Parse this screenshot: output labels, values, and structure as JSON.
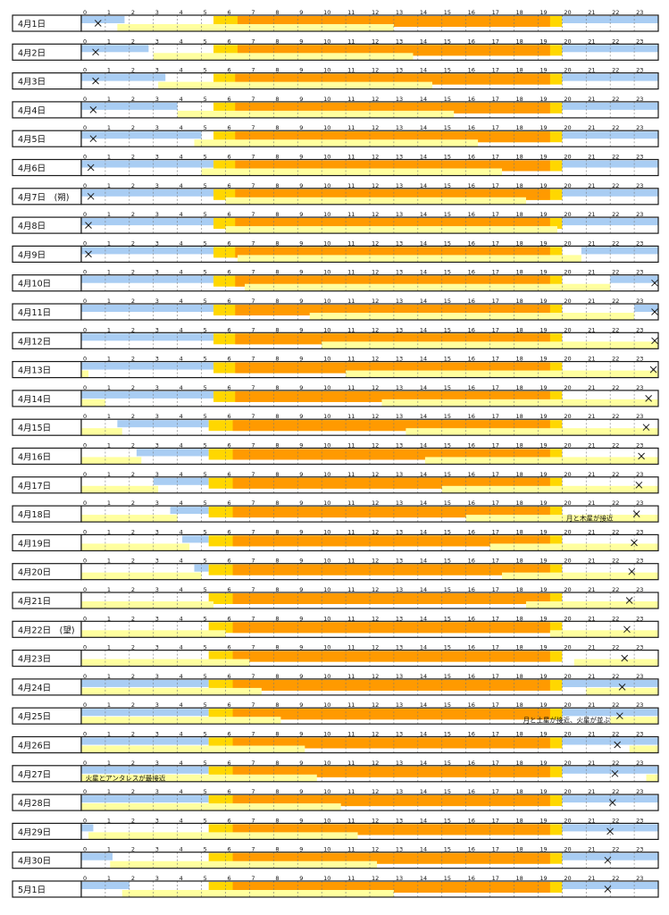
{
  "chart_data": {
    "type": "gantt",
    "hour_ticks": [
      "0",
      "1",
      "2",
      "3",
      "4",
      "5",
      "6",
      "7",
      "8",
      "9",
      "10",
      "11",
      "12",
      "13",
      "14",
      "15",
      "16",
      "17",
      "18",
      "19",
      "20",
      "21",
      "22",
      "23"
    ],
    "hour_range": [
      0,
      24
    ],
    "colors": {
      "night": "#a9cdf3",
      "twilight": "#ffd700",
      "daylight": "#ff9a00",
      "moon": "#ffff9f",
      "border": "#1a1a1a",
      "gridline": "#777777",
      "watermark": "#c8c8c8"
    },
    "days": [
      {
        "label": "4月1日",
        "daylight": [
          6.5,
          19.5
        ],
        "twilight": [
          5.5,
          20
        ],
        "night_end": 1.8,
        "night_start": 20,
        "moon": [
          1.5,
          13
        ],
        "moon_pos": 0.4
      },
      {
        "label": "4月2日",
        "daylight": [
          6.5,
          19.5
        ],
        "twilight": [
          5.5,
          20
        ],
        "night_end": 2.8,
        "night_start": 20,
        "moon": [
          3,
          13.8
        ],
        "moon_pos": 0.3
      },
      {
        "label": "4月3日",
        "daylight": [
          6.4,
          19.5
        ],
        "twilight": [
          5.5,
          20
        ],
        "night_end": 3.5,
        "night_start": 20,
        "moon": [
          3.2,
          14.6
        ],
        "moon_pos": 0.3
      },
      {
        "label": "4月4日",
        "daylight": [
          6.4,
          19.5
        ],
        "twilight": [
          5.5,
          20
        ],
        "night_end": 4,
        "night_start": 20,
        "moon": [
          4,
          15.5
        ],
        "moon_pos": 0.2
      },
      {
        "label": "4月5日",
        "daylight": [
          6.4,
          19.5
        ],
        "twilight": [
          5.5,
          20
        ],
        "night_end": 5,
        "night_start": 20,
        "moon": [
          4.7,
          16.5
        ],
        "moon_pos": 0.2
      },
      {
        "label": "4月6日",
        "daylight": [
          6.4,
          19.5
        ],
        "twilight": [
          5.5,
          20
        ],
        "night_end": 5.5,
        "night_start": 20,
        "moon": [
          5,
          17.5
        ],
        "moon_pos": 0.1
      },
      {
        "label": "4月7日　(朔)",
        "daylight": [
          6.4,
          19.5
        ],
        "twilight": [
          5.5,
          20
        ],
        "night_end": 5.5,
        "night_start": 20,
        "moon": [
          6,
          18.5
        ],
        "moon_pos": 0.1
      },
      {
        "label": "4月8日",
        "daylight": [
          6.4,
          19.5
        ],
        "twilight": [
          5.5,
          20
        ],
        "night_end": 5.5,
        "night_start": 20,
        "moon": [
          6,
          19.8
        ],
        "moon_pos": 0.0
      },
      {
        "label": "4月9日",
        "daylight": [
          6.4,
          19.5
        ],
        "twilight": [
          5.5,
          20
        ],
        "night_end": 5.5,
        "night_start": 20.8,
        "moon": [
          6.5,
          20.8
        ],
        "moon_pos": 0.0
      },
      {
        "label": "4月10日",
        "daylight": [
          6.4,
          19.5
        ],
        "twilight": [
          5.5,
          20
        ],
        "night_end": 5.5,
        "night_start": 22,
        "moon": [
          6.8,
          22
        ],
        "moon_pos": 23.9
      },
      {
        "label": "4月11日",
        "daylight": [
          6.4,
          19.5
        ],
        "twilight": [
          5.5,
          20
        ],
        "night_end": 5.5,
        "night_start": 23,
        "moon": [
          9.5,
          23
        ],
        "moon_pos": 23.8
      },
      {
        "label": "4月12日",
        "daylight": [
          6.4,
          19.5
        ],
        "twilight": [
          5.5,
          20
        ],
        "night_end": 5.5,
        "night_start": 24,
        "moon": [
          10,
          24
        ],
        "moon_pos": 23.6
      },
      {
        "label": "4月13日",
        "daylight": [
          6.4,
          19.5
        ],
        "twilight": [
          5.5,
          20
        ],
        "night_end": 5.5,
        "night_start": 24,
        "moon": [
          11,
          24
        ],
        "moon_pos": 23.5,
        "moon_am": 0.3
      },
      {
        "label": "4月14日",
        "daylight": [
          6.4,
          19.5
        ],
        "twilight": [
          5.5,
          20
        ],
        "night_end": 5.5,
        "night_start": 24,
        "moon": [
          12.5,
          24
        ],
        "moon_pos": 23.3,
        "moon_am": 1
      },
      {
        "label": "4月15日",
        "daylight": [
          6.3,
          19.5
        ],
        "twilight": [
          5.3,
          20
        ],
        "night_end": 5.3,
        "night_start": 24,
        "night_begin": 1.5,
        "moon": [
          13.5,
          24
        ],
        "moon_pos": 23.2,
        "moon_am": 1.7
      },
      {
        "label": "4月16日",
        "daylight": [
          6.3,
          19.5
        ],
        "twilight": [
          5.3,
          20
        ],
        "night_end": 5.3,
        "night_start": 24,
        "night_begin": 2.3,
        "moon": [
          14.3,
          24
        ],
        "moon_pos": 23.0,
        "moon_am": 2.5
      },
      {
        "label": "4月17日",
        "daylight": [
          6.3,
          19.5
        ],
        "twilight": [
          5.3,
          20
        ],
        "night_end": 5.3,
        "night_start": 24,
        "night_begin": 3,
        "moon": [
          15,
          24
        ],
        "moon_pos": 22.9,
        "moon_am": 3.2
      },
      {
        "label": "4月18日",
        "daylight": [
          6.3,
          19.5
        ],
        "twilight": [
          5.3,
          20
        ],
        "night_end": 5.3,
        "night_start": 24,
        "night_begin": 3.7,
        "moon": [
          16,
          24
        ],
        "moon_pos": 22.8,
        "moon_am": 4
      },
      {
        "label": "4月19日",
        "daylight": [
          6.3,
          19.5
        ],
        "twilight": [
          5.3,
          20
        ],
        "night_end": 5.3,
        "night_start": 24,
        "night_begin": 4.2,
        "moon": [
          17,
          24
        ],
        "moon_pos": 22.7,
        "moon_am": 4.5
      },
      {
        "label": "4月20日",
        "daylight": [
          6.3,
          19.5
        ],
        "twilight": [
          5.3,
          20
        ],
        "night_end": 5.3,
        "night_start": 24,
        "night_begin": 4.7,
        "moon": [
          17.5,
          24
        ],
        "moon_pos": 22.6,
        "moon_am": 5
      },
      {
        "label": "4月21日",
        "daylight": [
          6.3,
          19.5
        ],
        "twilight": [
          5.3,
          20
        ],
        "night_end": 5.3,
        "night_start": 24,
        "night_begin": 5.3,
        "moon": [
          18.5,
          24
        ],
        "moon_pos": 22.5,
        "moon_am": 5.5
      },
      {
        "label": "4月22日　(望)",
        "daylight": [
          6.3,
          19.5
        ],
        "twilight": [
          5.3,
          20
        ],
        "night_end": 5.3,
        "night_start": 24,
        "night_begin": 5.3,
        "moon": [
          19.5,
          24
        ],
        "moon_pos": 22.4,
        "moon_am": 6
      },
      {
        "label": "4月23日",
        "daylight": [
          6.3,
          19.5
        ],
        "twilight": [
          5.3,
          20
        ],
        "night_end": 5.3,
        "night_start": 24,
        "night_begin": 5.3,
        "moon": [
          20.5,
          24
        ],
        "moon_pos": 22.3,
        "moon_am": 7
      },
      {
        "label": "4月24日",
        "daylight": [
          6.3,
          19.5
        ],
        "twilight": [
          5.3,
          20
        ],
        "night_end": 5.3,
        "night_start": 20,
        "night_between": [
          20,
          21
        ],
        "moon": [
          21,
          24
        ],
        "moon_pos": 22.2,
        "moon_am": 7.5
      },
      {
        "label": "4月25日",
        "daylight": [
          6.3,
          19.5
        ],
        "twilight": [
          5.3,
          20
        ],
        "night_end": 5.3,
        "night_start": 20,
        "night_between": [
          20,
          22
        ],
        "moon": [
          22,
          24
        ],
        "moon_pos": 22.1,
        "moon_am": 8.3
      },
      {
        "label": "4月26日",
        "daylight": [
          6.3,
          19.5
        ],
        "twilight": [
          5.3,
          20
        ],
        "night_end": 5.3,
        "night_start": 20,
        "night_between": [
          20,
          22.8
        ],
        "moon": [
          22.8,
          24
        ],
        "moon_pos": 22.0,
        "moon_am": 9.3
      },
      {
        "label": "4月27日",
        "daylight": [
          6.3,
          19.5
        ],
        "twilight": [
          5.3,
          20
        ],
        "night_end": 5.3,
        "night_start": 20,
        "moon": [
          23.5,
          24
        ],
        "moon_pos": 21.9,
        "moon_am": 9.8
      },
      {
        "label": "4月28日",
        "daylight": [
          6.3,
          19.5
        ],
        "twilight": [
          5.3,
          20
        ],
        "night_end": 5.3,
        "night_start": 20,
        "moon_am": 10.8,
        "moon_pos": 21.8
      },
      {
        "label": "4月29日",
        "daylight": [
          6.3,
          19.5
        ],
        "twilight": [
          5.3,
          20
        ],
        "night_end": 0.5,
        "night_start": 20,
        "moon_am": 11.5,
        "moon_am_start": 0.3,
        "moon_pos": 21.7
      },
      {
        "label": "4月30日",
        "daylight": [
          6.3,
          19.5
        ],
        "twilight": [
          5.3,
          20
        ],
        "night_end": 1.3,
        "night_start": 20,
        "moon_am": 12.3,
        "moon_am_start": 1.2,
        "moon_pos": 21.6
      },
      {
        "label": "5月1日",
        "daylight": [
          6.3,
          19.5
        ],
        "twilight": [
          5.3,
          20
        ],
        "night_end": 2,
        "night_start": 20,
        "moon_am": 13,
        "moon_am_start": 1.7,
        "moon_pos": 21.6
      }
    ],
    "annotations": [
      {
        "row": 17,
        "text": "月と木星が接近",
        "hour": 20.1
      },
      {
        "row": 24,
        "text": "月と土星が接近、火星が並ぶ",
        "hour": 18.3
      },
      {
        "row": 26,
        "text": "火星とアンタレスが最接近",
        "hour": 0.1
      }
    ]
  }
}
